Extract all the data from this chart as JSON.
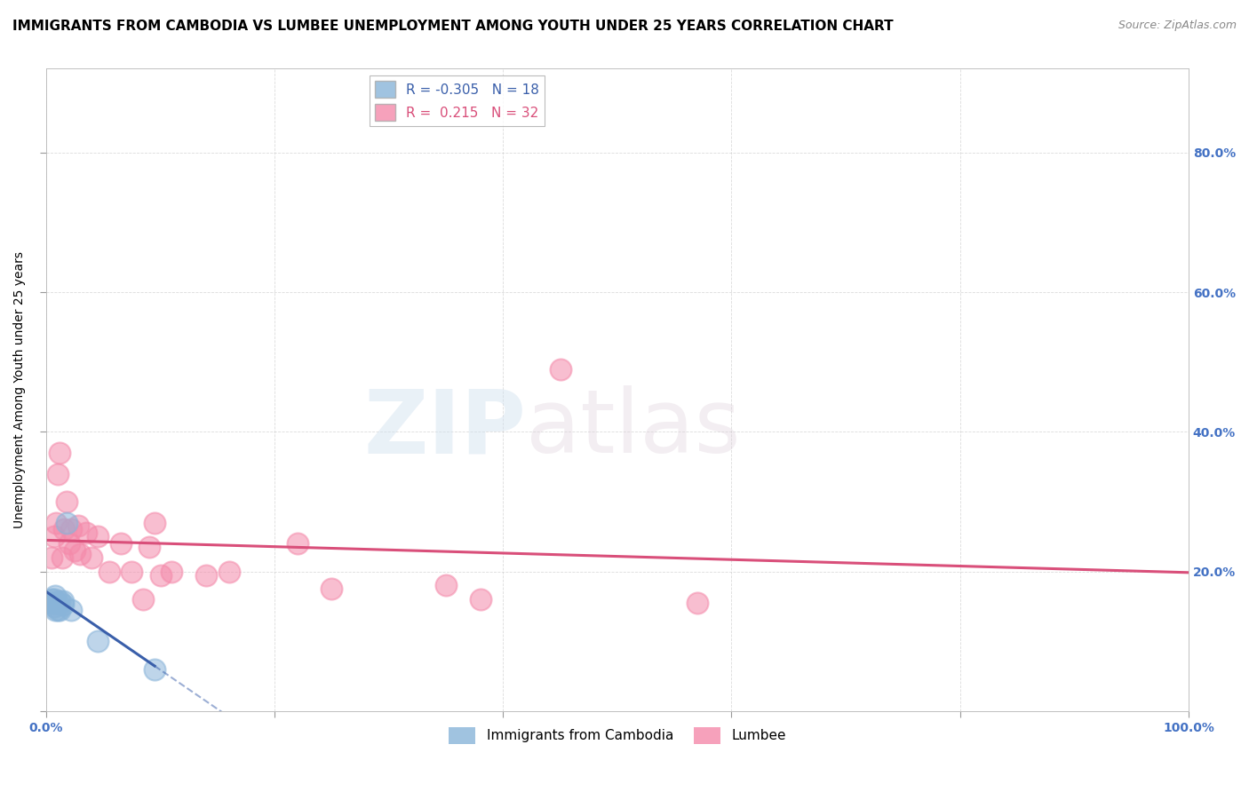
{
  "title": "IMMIGRANTS FROM CAMBODIA VS LUMBEE UNEMPLOYMENT AMONG YOUTH UNDER 25 YEARS CORRELATION CHART",
  "source": "Source: ZipAtlas.com",
  "ylabel": "Unemployment Among Youth under 25 years",
  "xlim": [
    0.0,
    1.0
  ],
  "ylim": [
    0.0,
    0.92
  ],
  "xticks": [
    0.0,
    0.2,
    0.4,
    0.6,
    0.8,
    1.0
  ],
  "xtick_labels": [
    "0.0%",
    "",
    "",
    "",
    "",
    "100.0%"
  ],
  "yticks": [
    0.0,
    0.2,
    0.4,
    0.6,
    0.8
  ],
  "ytick_labels_right": [
    "",
    "20.0%",
    "40.0%",
    "60.0%",
    "80.0%"
  ],
  "background_color": "#ffffff",
  "grid_color": "#cccccc",
  "cambodia_color": "#89b4d9",
  "lumbee_color": "#f48aaa",
  "cambodia_line_color": "#3a5faa",
  "lumbee_line_color": "#d94f7a",
  "cambodia_x": [
    0.005,
    0.005,
    0.007,
    0.007,
    0.007,
    0.008,
    0.008,
    0.008,
    0.01,
    0.01,
    0.012,
    0.012,
    0.015,
    0.015,
    0.018,
    0.022,
    0.045,
    0.095
  ],
  "cambodia_y": [
    0.155,
    0.16,
    0.15,
    0.155,
    0.16,
    0.145,
    0.155,
    0.165,
    0.145,
    0.155,
    0.145,
    0.158,
    0.152,
    0.158,
    0.27,
    0.145,
    0.1,
    0.06
  ],
  "lumbee_x": [
    0.005,
    0.007,
    0.009,
    0.01,
    0.012,
    0.014,
    0.016,
    0.018,
    0.02,
    0.022,
    0.025,
    0.028,
    0.03,
    0.035,
    0.04,
    0.045,
    0.055,
    0.065,
    0.075,
    0.085,
    0.09,
    0.095,
    0.1,
    0.11,
    0.14,
    0.16,
    0.22,
    0.25,
    0.35,
    0.38,
    0.45,
    0.57
  ],
  "lumbee_y": [
    0.22,
    0.25,
    0.27,
    0.34,
    0.37,
    0.22,
    0.26,
    0.3,
    0.24,
    0.26,
    0.23,
    0.265,
    0.225,
    0.255,
    0.22,
    0.25,
    0.2,
    0.24,
    0.2,
    0.16,
    0.235,
    0.27,
    0.195,
    0.2,
    0.195,
    0.2,
    0.24,
    0.175,
    0.18,
    0.16,
    0.49,
    0.155
  ],
  "title_fontsize": 11,
  "source_fontsize": 9,
  "axis_label_fontsize": 10,
  "tick_fontsize": 10,
  "legend_fontsize": 11
}
